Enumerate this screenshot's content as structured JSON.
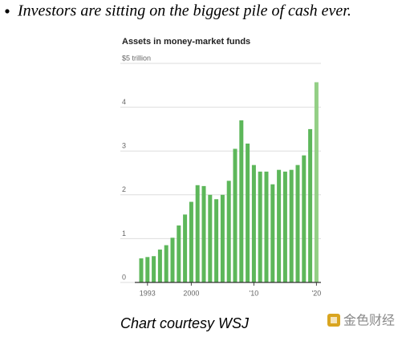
{
  "heading": "Investors are sitting on the biggest pile of cash ever.",
  "chart_data": {
    "type": "bar",
    "title": "Assets in money-market funds",
    "categories": [
      null,
      "1993",
      null,
      null,
      null,
      null,
      null,
      null,
      "2000",
      null,
      null,
      null,
      null,
      null,
      null,
      null,
      null,
      null,
      "'10",
      null,
      null,
      null,
      null,
      null,
      null,
      null,
      null,
      null,
      "'20"
    ],
    "values": [
      0.55,
      0.58,
      0.6,
      0.75,
      0.85,
      1.02,
      1.3,
      1.55,
      1.84,
      2.22,
      2.2,
      2.0,
      1.9,
      2.0,
      2.32,
      3.05,
      3.7,
      3.17,
      2.68,
      2.53,
      2.53,
      2.24,
      2.57,
      2.53,
      2.57,
      2.68,
      2.9,
      3.5,
      4.57
    ],
    "colors": [
      "#5db75a",
      "#5db75a",
      "#5db75a",
      "#5db75a",
      "#5db75a",
      "#5db75a",
      "#5db75a",
      "#5db75a",
      "#5db75a",
      "#5db75a",
      "#5db75a",
      "#5db75a",
      "#5db75a",
      "#5db75a",
      "#5db75a",
      "#5db75a",
      "#5db75a",
      "#5db75a",
      "#5db75a",
      "#5db75a",
      "#5db75a",
      "#5db75a",
      "#5db75a",
      "#5db75a",
      "#5db75a",
      "#5db75a",
      "#5db75a",
      "#5db75a",
      "#93cf85"
    ],
    "ylim": [
      0,
      5
    ],
    "yticks": [
      0,
      1,
      2,
      3,
      4,
      {
        "value": 5,
        "label": "$5 trillion"
      }
    ],
    "grid": true
  },
  "caption": "Chart courtesy WSJ",
  "watermark": "金色财经"
}
